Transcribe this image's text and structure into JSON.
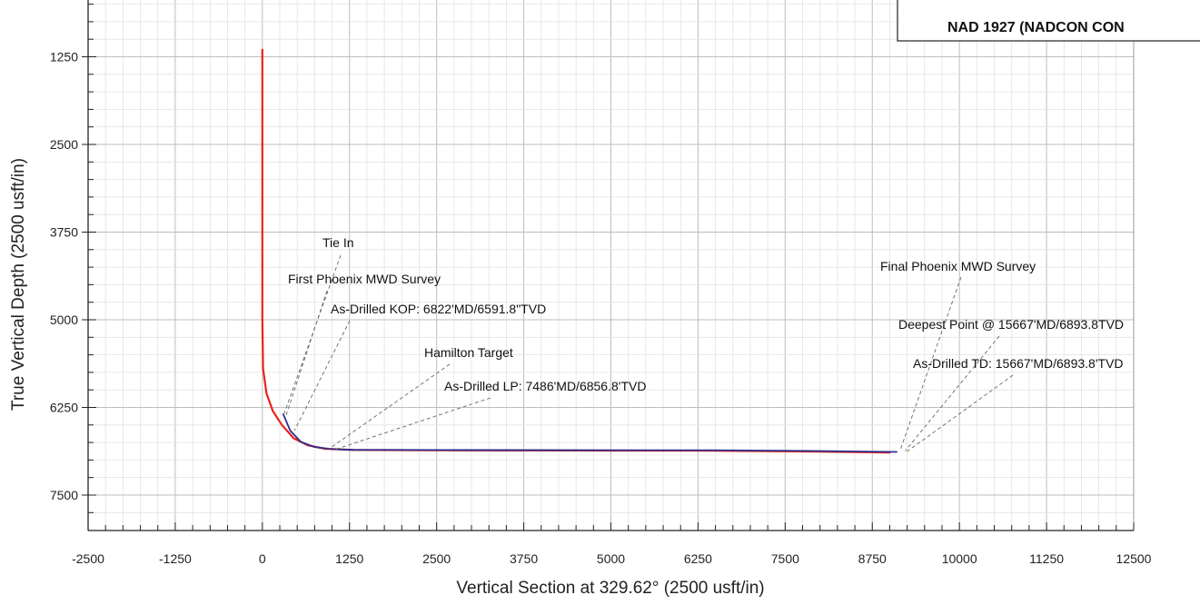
{
  "chart_data": {
    "type": "line",
    "xlabel": "Vertical Section at 329.62° (2500 usft/in)",
    "ylabel": "True Vertical Depth (2500 usft/in)",
    "xlim": [
      -2500,
      12500
    ],
    "ylim": [
      7500,
      0
    ],
    "y_inverted": true,
    "grid": true,
    "x_ticks": [
      "-2500",
      "-1250",
      "0",
      "1250",
      "2500",
      "3750",
      "5000",
      "6250",
      "7500",
      "8750",
      "10000",
      "11250",
      "12500"
    ],
    "y_ticks": [
      "1250",
      "2500",
      "3750",
      "5000",
      "6250",
      "7500"
    ],
    "legend_box_text": "NAD 1927 (NADCON CON",
    "series": [
      {
        "color": "#e8231b",
        "points": [
          [
            0,
            1150
          ],
          [
            0,
            2000
          ],
          [
            0,
            3000
          ],
          [
            0,
            4000
          ],
          [
            0,
            5000
          ],
          [
            10,
            5700
          ],
          [
            60,
            6050
          ],
          [
            150,
            6300
          ],
          [
            280,
            6500
          ],
          [
            450,
            6690
          ],
          [
            650,
            6790
          ],
          [
            900,
            6840
          ],
          [
            1300,
            6856
          ],
          [
            2500,
            6862
          ],
          [
            5000,
            6865
          ],
          [
            6500,
            6866
          ],
          [
            8000,
            6880
          ],
          [
            9000,
            6894
          ]
        ]
      },
      {
        "color": "#2b2f8f",
        "points": [
          [
            300,
            6350
          ],
          [
            400,
            6580
          ],
          [
            550,
            6740
          ],
          [
            750,
            6815
          ],
          [
            1000,
            6845
          ],
          [
            1300,
            6855
          ],
          [
            2500,
            6858
          ],
          [
            5000,
            6860
          ],
          [
            6500,
            6860
          ],
          [
            8000,
            6872
          ],
          [
            9100,
            6885
          ]
        ]
      }
    ],
    "annotations": [
      {
        "text": "Tie In",
        "target": [
          310,
          6345
        ]
      },
      {
        "text": "First Phoenix MWD Survey",
        "target": [
          330,
          6395
        ]
      },
      {
        "text": "As-Drilled KOP: 6822'MD/6591.8\"TVD",
        "target": [
          460,
          6580
        ]
      },
      {
        "text": "Hamilton Target",
        "target": [
          950,
          6845
        ]
      },
      {
        "text": "As-Drilled LP: 7486'MD/6856.8'TVD",
        "target": [
          1050,
          6848
        ]
      },
      {
        "text": "Final Phoenix MWD Survey",
        "target": [
          9150,
          6860
        ]
      },
      {
        "text": "Deepest Point @ 15667'MD/6893.8TVD",
        "target": [
          9220,
          6872
        ]
      },
      {
        "text": "As-Drilled TD: 15667'MD/6893.8'TVD",
        "target": [
          9250,
          6878
        ]
      }
    ]
  }
}
